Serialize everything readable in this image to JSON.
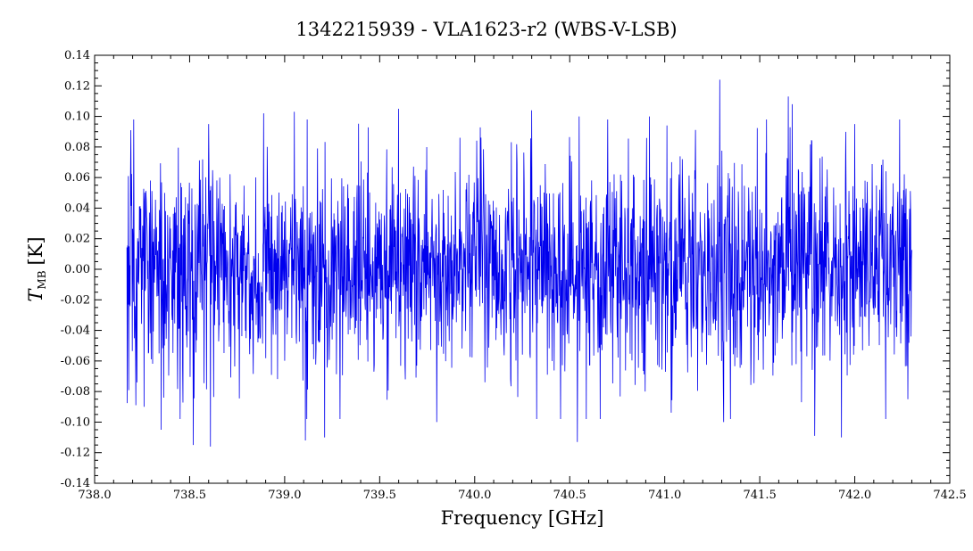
{
  "chart_data": {
    "type": "line",
    "title": "1342215939 - VLA1623-r2 (WBS-V-LSB)",
    "xlabel": "Frequency [GHz]",
    "ylabel_main": "T",
    "ylabel_sub": "MB",
    "ylabel_unit": "[K]",
    "xlim": [
      738.0,
      742.5
    ],
    "ylim": [
      -0.14,
      0.14
    ],
    "xticks": [
      738.0,
      738.5,
      739.0,
      739.5,
      740.0,
      740.5,
      741.0,
      741.5,
      742.0,
      742.5
    ],
    "xtick_labels": [
      "738.0",
      "738.5",
      "739.0",
      "739.5",
      "740.0",
      "740.5",
      "741.0",
      "741.5",
      "742.0",
      "742.5"
    ],
    "yticks": [
      -0.14,
      -0.12,
      -0.1,
      -0.08,
      -0.06,
      -0.04,
      -0.02,
      0.0,
      0.02,
      0.04,
      0.06,
      0.08,
      0.1,
      0.12,
      0.14
    ],
    "ytick_labels": [
      "-0.14",
      "-0.12",
      "-0.10",
      "-0.08",
      "-0.06",
      "-0.04",
      "-0.02",
      "0.00",
      "0.02",
      "0.04",
      "0.06",
      "0.08",
      "0.10",
      "0.12",
      "0.14"
    ],
    "grid": false,
    "legend": "none",
    "series": [
      {
        "color": "#0000ee",
        "x_start": 738.17,
        "x_end": 742.3,
        "noise_std": 0.035,
        "extremes": [
          {
            "x": 738.19,
            "y": 0.091
          },
          {
            "x": 738.26,
            "y": -0.09
          },
          {
            "x": 738.35,
            "y": -0.105
          },
          {
            "x": 738.52,
            "y": -0.115
          },
          {
            "x": 738.6,
            "y": 0.095
          },
          {
            "x": 738.61,
            "y": -0.116
          },
          {
            "x": 738.89,
            "y": 0.102
          },
          {
            "x": 739.05,
            "y": 0.103
          },
          {
            "x": 739.11,
            "y": -0.112
          },
          {
            "x": 739.21,
            "y": -0.11
          },
          {
            "x": 739.6,
            "y": 0.105
          },
          {
            "x": 739.8,
            "y": -0.1
          },
          {
            "x": 740.3,
            "y": 0.104
          },
          {
            "x": 740.54,
            "y": -0.113
          },
          {
            "x": 740.55,
            "y": 0.1
          },
          {
            "x": 740.92,
            "y": 0.1
          },
          {
            "x": 741.29,
            "y": 0.124
          },
          {
            "x": 741.31,
            "y": -0.1
          },
          {
            "x": 741.65,
            "y": 0.113
          },
          {
            "x": 741.67,
            "y": 0.108
          },
          {
            "x": 741.79,
            "y": -0.109
          },
          {
            "x": 741.93,
            "y": -0.11
          },
          {
            "x": 742.0,
            "y": 0.095
          },
          {
            "x": 742.28,
            "y": -0.085
          }
        ]
      }
    ]
  }
}
